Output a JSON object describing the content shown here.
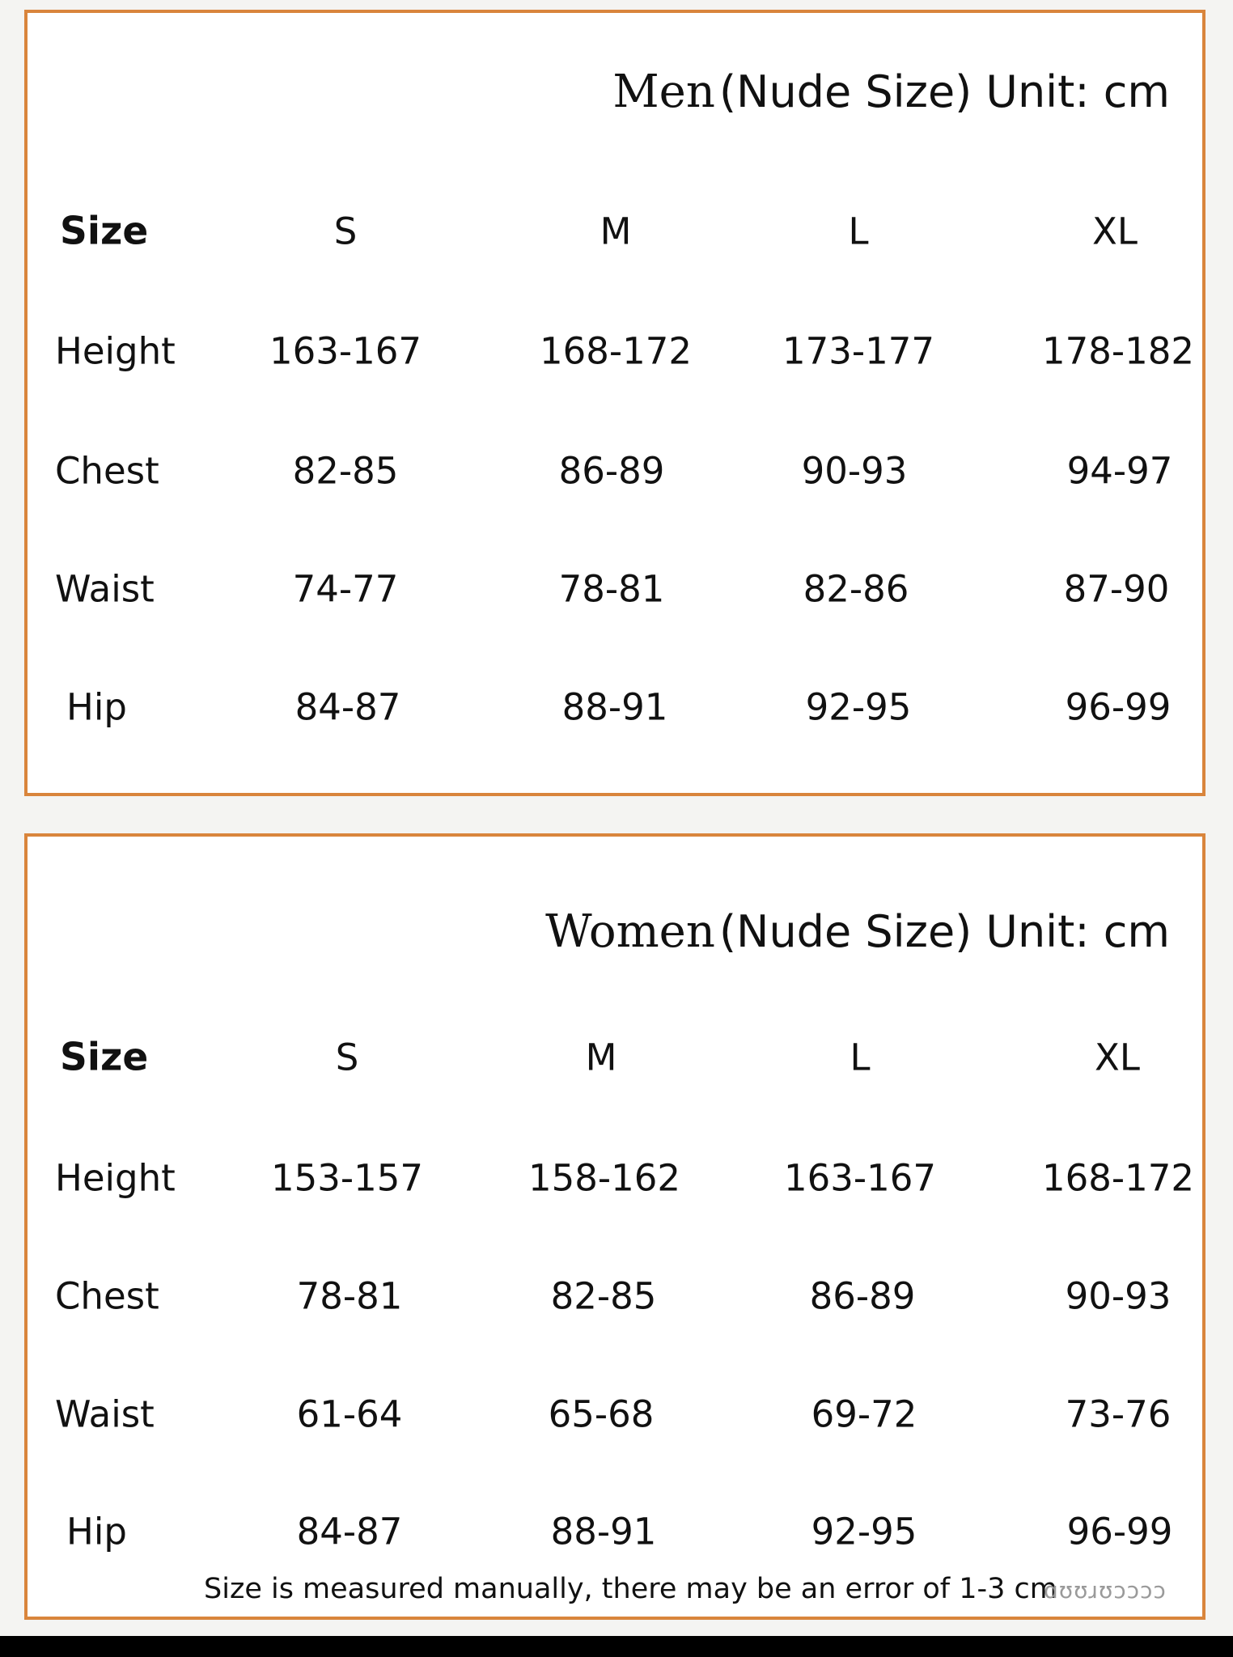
{
  "men": {
    "gender": "Men",
    "title_rest": "(Nude Size) Unit: cm",
    "headers": [
      "Size",
      "S",
      "M",
      "L",
      "XL"
    ],
    "rows": [
      {
        "label": "Height",
        "values": [
          "163-167",
          "168-172",
          "173-177",
          "178-182"
        ]
      },
      {
        "label": "Chest",
        "values": [
          "82-85",
          "86-89",
          "90-93",
          "94-97"
        ]
      },
      {
        "label": "Waist",
        "values": [
          "74-77",
          "78-81",
          "82-86",
          "87-90"
        ]
      },
      {
        "label": "Hip",
        "values": [
          "84-87",
          "88-91",
          "92-95",
          "96-99"
        ]
      }
    ]
  },
  "women": {
    "gender": "Women",
    "title_rest": "(Nude Size) Unit: cm",
    "headers": [
      "Size",
      "S",
      "M",
      "L",
      "XL"
    ],
    "rows": [
      {
        "label": "Height",
        "values": [
          "153-157",
          "158-162",
          "163-167",
          "168-172"
        ]
      },
      {
        "label": "Chest",
        "values": [
          "78-81",
          "82-85",
          "86-89",
          "90-93"
        ]
      },
      {
        "label": "Waist",
        "values": [
          "61-64",
          "65-68",
          "69-72",
          "73-76"
        ]
      },
      {
        "label": "Hip",
        "values": [
          "84-87",
          "88-91",
          "92-95",
          "96-99"
        ]
      }
    ]
  },
  "note": "Size is measured manually, there may be an error of 1-3 cm",
  "watermark": "ɑʊʊɹʊɔɔɔɔ",
  "colors": {
    "border": "#d9853c",
    "background": "#f4f4f2",
    "panel": "#ffffff"
  }
}
